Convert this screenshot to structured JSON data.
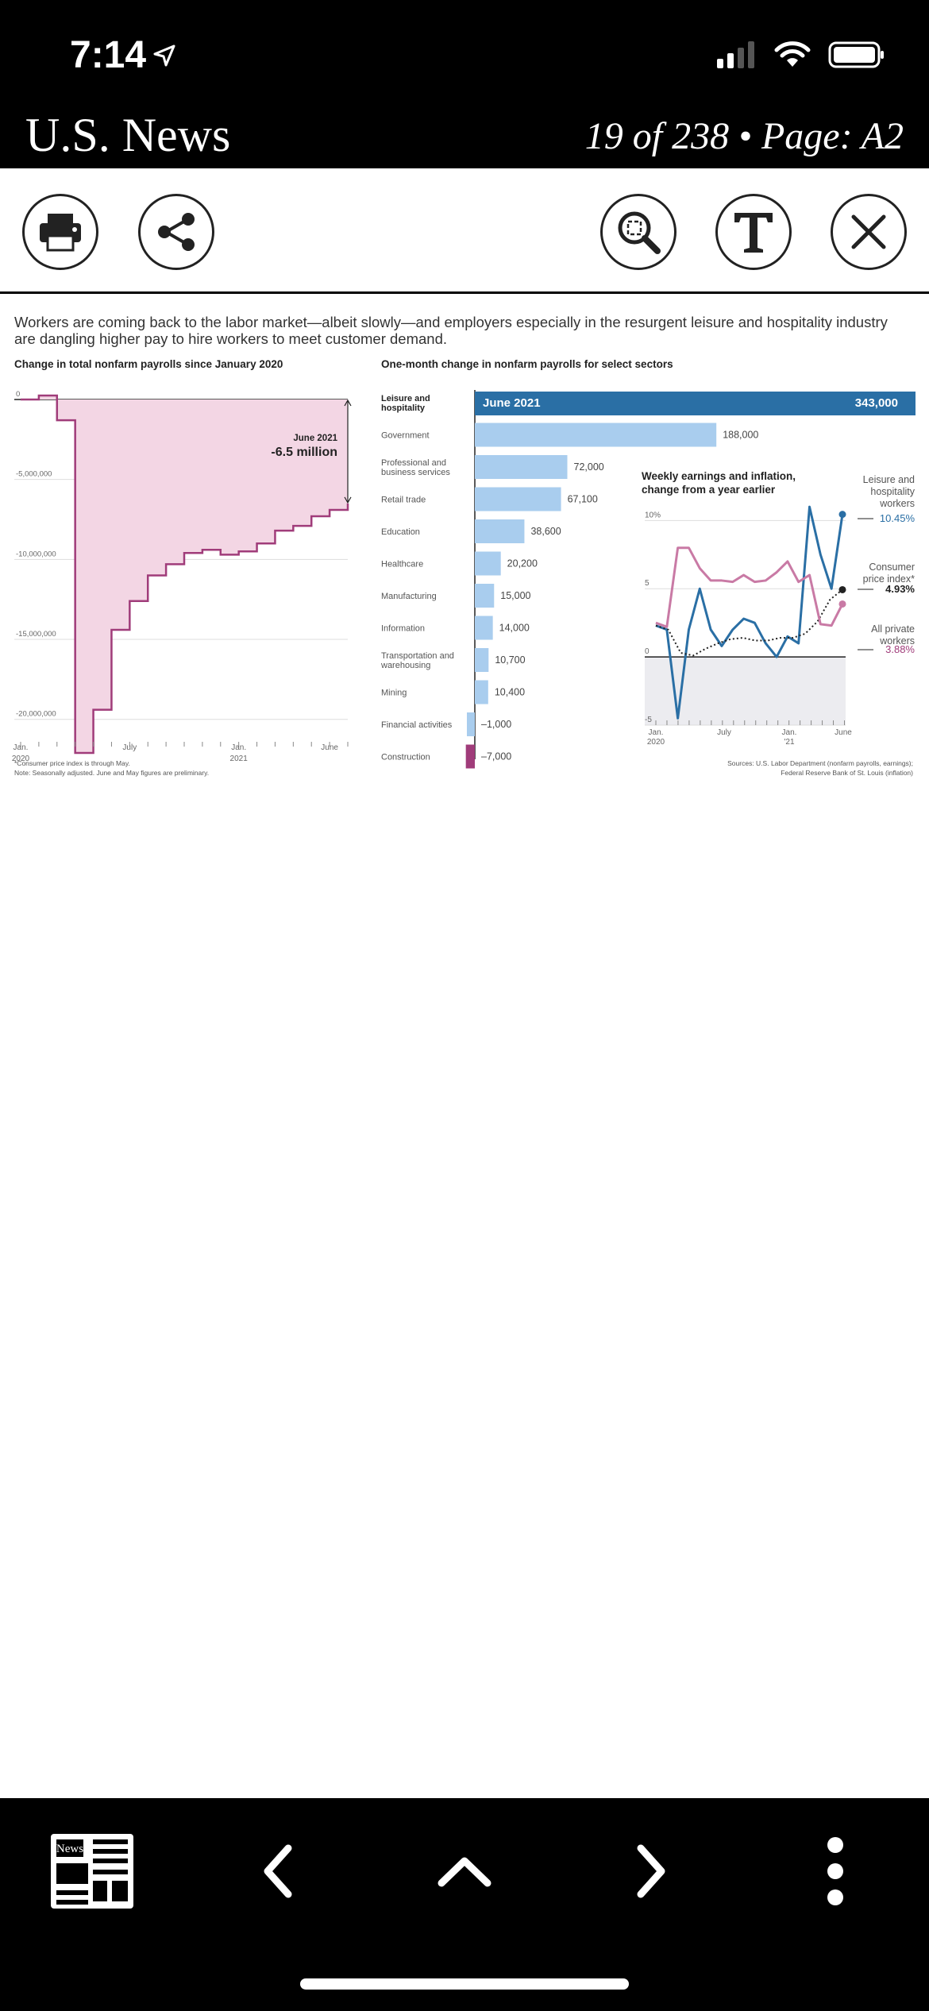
{
  "status": {
    "time": "7:14"
  },
  "header": {
    "app_title": "U.S. News",
    "page_info": "19 of 238 • Page: A2"
  },
  "toolbar": {
    "print": "print-icon",
    "share": "share-icon",
    "zoom": "zoom-icon",
    "text": "text-view-icon",
    "close": "close-icon"
  },
  "article": {
    "intro": "Workers are coming back to the labor market—albeit slowly—and employers especially in the resurgent leisure and hospitality industry are dangling higher pay to hire workers to meet customer demand.",
    "footnote1": "*Consumer price index is through May.",
    "footnote2": "Note: Seasonally adjusted. June and May figures are preliminary.",
    "sources1": "Sources: U.S. Labor Department (nonfarm payrolls, earnings);",
    "sources2": "Federal Reserve Bank of St. Louis (inflation)"
  },
  "chart_data": [
    {
      "type": "area",
      "title": "Change in total nonfarm payrolls since January 2020",
      "y_ticks": [
        "0",
        "-5,000,000",
        "-10,000,000",
        "-15,000,000",
        "-20,000,000"
      ],
      "x_ticks": [
        "Jan. 2020",
        "July",
        "Jan. 2021",
        "June"
      ],
      "ylim": [
        -22000000,
        0
      ],
      "annotation_label": "June 2021",
      "annotation_value": "-6.5 million",
      "series": [
        {
          "name": "",
          "values": [
            0,
            250000,
            -1300000,
            -22100000,
            -19400000,
            -14400000,
            -12600000,
            -11000000,
            -10300000,
            -9600000,
            -9400000,
            -9700000,
            -9500000,
            -9000000,
            -8200000,
            -7900000,
            -7300000,
            -6900000,
            -6500000
          ]
        }
      ]
    },
    {
      "type": "bar",
      "title": "One-month change in nonfarm payrolls for select sectors",
      "header_label": "June 2021",
      "categories": [
        "Leisure and hospitality",
        "Government",
        "Professional and business services",
        "Retail trade",
        "Education",
        "Healthcare",
        "Manufacturing",
        "Information",
        "Transportation and warehousing",
        "Mining",
        "Financial activities",
        "Construction"
      ],
      "values": [
        343000,
        188000,
        72000,
        67100,
        38600,
        20200,
        15000,
        14000,
        10700,
        10400,
        -1000,
        -7000
      ],
      "labels": [
        "343,000",
        "188,000",
        "72,000",
        "67,100",
        "38,600",
        "20,200",
        "15,000",
        "14,000",
        "10,700",
        "10,400",
        "–1,000",
        "–7,000"
      ]
    },
    {
      "type": "line",
      "title": "Weekly earnings and inflation, change from a year earlier",
      "y_ticks": [
        "10%",
        "5",
        "0",
        "-5"
      ],
      "x_ticks": [
        "Jan. 2020",
        "July",
        "Jan. '21",
        "June"
      ],
      "ylim": [
        -5,
        12
      ],
      "series": [
        {
          "name": "Leisure and hospitality workers",
          "end_label": "10.45%",
          "color": "#2a6fa5",
          "values": [
            2.3,
            2.0,
            -4.5,
            2.0,
            5.0,
            2.0,
            0.8,
            2.0,
            2.8,
            2.5,
            1.0,
            0.0,
            1.5,
            1.0,
            11.0,
            7.5,
            5.0,
            10.45
          ]
        },
        {
          "name": "Consumer price index*",
          "end_label": "4.93%",
          "color": "#222",
          "values": [
            2.3,
            2.0,
            0.3,
            0.1,
            0.6,
            1.0,
            1.3,
            1.4,
            1.2,
            1.2,
            1.4,
            1.4,
            1.7,
            2.6,
            4.2,
            4.93
          ]
        },
        {
          "name": "All private workers",
          "end_label": "3.88%",
          "color": "#c97aa5",
          "values": [
            2.5,
            2.2,
            8.0,
            8.0,
            6.5,
            5.6,
            5.6,
            5.5,
            6.0,
            5.5,
            5.6,
            6.2,
            7.0,
            5.5,
            6.0,
            2.4,
            2.3,
            3.88
          ]
        }
      ]
    }
  ],
  "bottom_nav": {
    "news_label": "News",
    "sections": "sections-icon",
    "prev": "chevron-left-icon",
    "up": "chevron-up-icon",
    "next": "chevron-right-icon",
    "more": "more-vertical-icon"
  }
}
